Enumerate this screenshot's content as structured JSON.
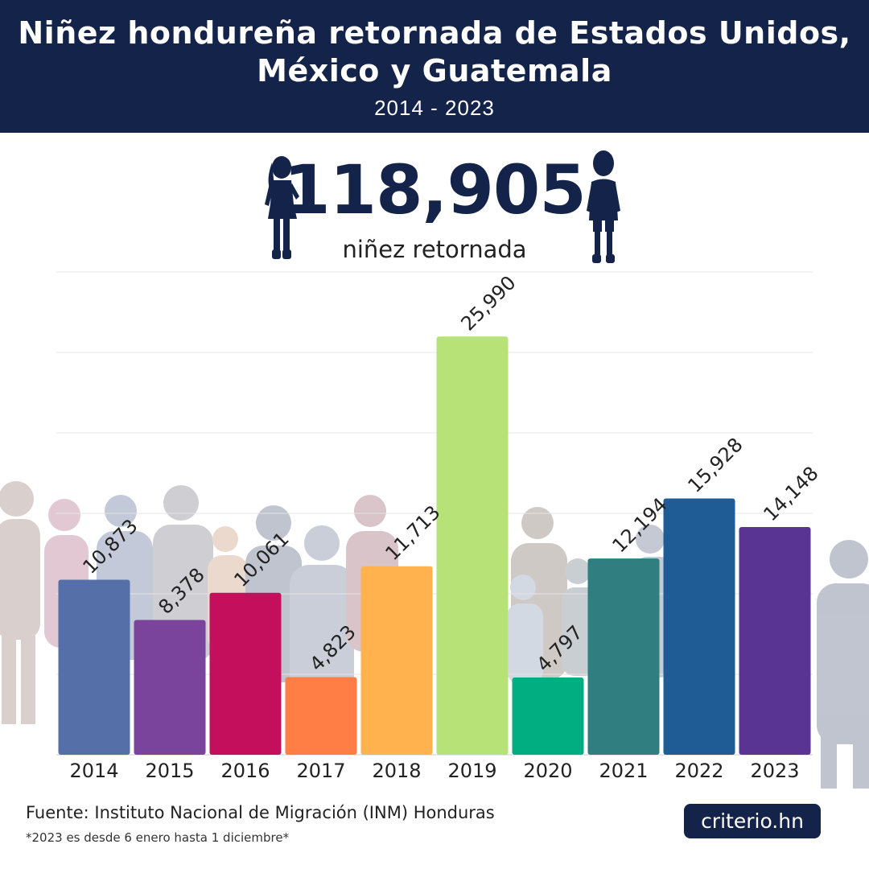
{
  "header": {
    "title_line1": "Niñez hondureña retornada de Estados Unidos,",
    "title_line2": "México y Guatemala",
    "subtitle": "2014 - 2023"
  },
  "total": {
    "value": "118,905",
    "label": "niñez retornada"
  },
  "colors": {
    "header_bg": "#13234a",
    "bars": [
      "#5570a8",
      "#7a449c",
      "#c4105c",
      "#ff7e45",
      "#ffb24e",
      "#b6e277",
      "#00ae82",
      "#317e80",
      "#1f5c95",
      "#5a3492"
    ]
  },
  "chart_data": {
    "type": "bar",
    "title": "Niñez hondureña retornada de Estados Unidos, México y Guatemala",
    "categories": [
      "2014",
      "2015",
      "2016",
      "2017",
      "2018",
      "2019",
      "2020",
      "2021",
      "2022",
      "2023"
    ],
    "values": [
      10873,
      8378,
      10061,
      4823,
      11713,
      25990,
      4797,
      12194,
      15928,
      14148
    ],
    "labels": [
      "10,873",
      "8,378",
      "10,061",
      "4,823",
      "11,713",
      "25,990",
      "4,797",
      "12,194",
      "15,928",
      "14,148"
    ],
    "ylim": [
      0,
      30000
    ],
    "grid": true,
    "xlabel": "",
    "ylabel": ""
  },
  "footer": {
    "source": "Fuente: Instituto Nacional de Migración (INM) Honduras",
    "note": "*2023 es desde 6 enero hasta 1 diciembre*",
    "brand": "criterio.hn"
  },
  "icons": [
    "girl-silhouette-icon",
    "boy-silhouette-icon"
  ]
}
